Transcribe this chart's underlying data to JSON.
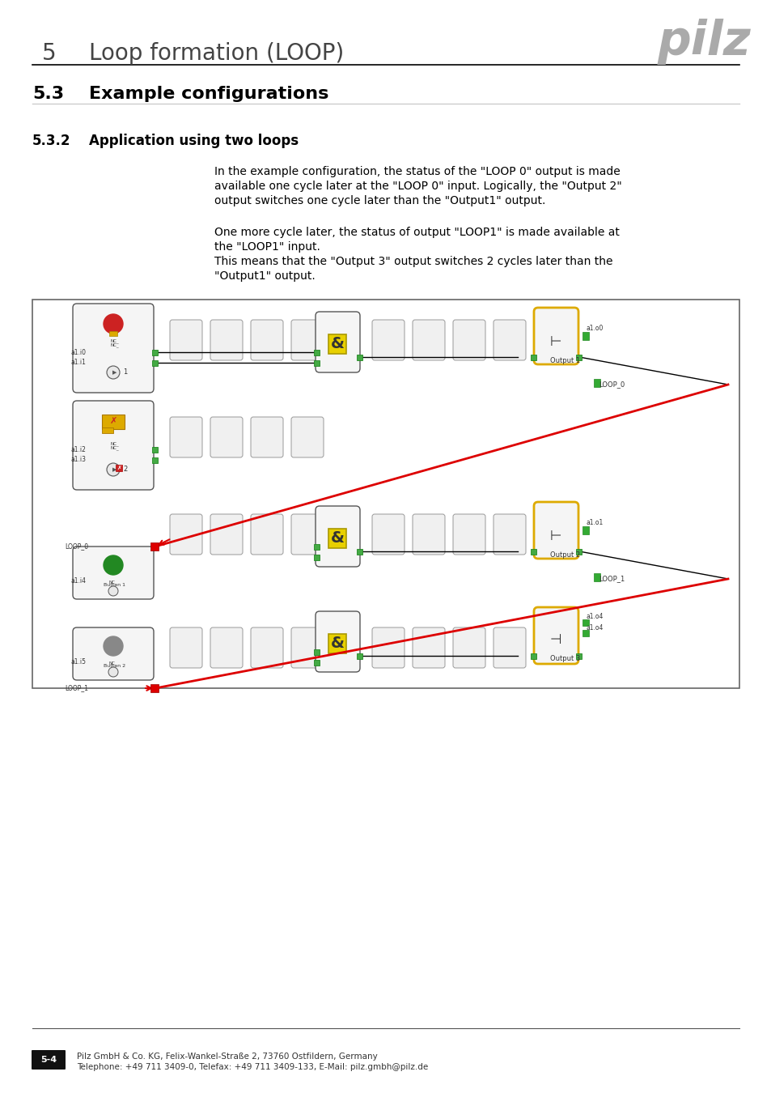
{
  "title_number": "5",
  "title_text": "Loop formation (LOOP)",
  "section_number": "5.3",
  "section_title": "Example configurations",
  "subsection_number": "5.3.2",
  "subsection_title": "Application using two loops",
  "paragraph1": "In the example configuration, the status of the \"LOOP 0\" output is made\navailable one cycle later at the \"LOOP 0\" input. Logically, the \"Output 2\"\noutput switches one cycle later than the \"Output1\" output.",
  "paragraph2": "One more cycle later, the status of output \"LOOP1\" is made available at\nthe \"LOOP1\" input.\nThis means that the \"Output 3\" output switches 2 cycles later than the\n\"Output1\" output.",
  "footer_page": "5-4",
  "footer_text1": "Pilz GmbH & Co. KG, Felix-Wankel-Straße 2, 73760 Ostfildern, Germany",
  "footer_text2": "Telephone: +49 711 3409-0, Telefax: +49 711 3409-133, E-Mail: pilz.gmbh@pilz.de",
  "bg_color": "#ffffff",
  "header_line_color": "#000000",
  "pilz_logo_color": "#aaaaaa",
  "diagram_border_color": "#666666",
  "diagram_bg": "#f0f0f0",
  "red_line_color": "#dd0000"
}
